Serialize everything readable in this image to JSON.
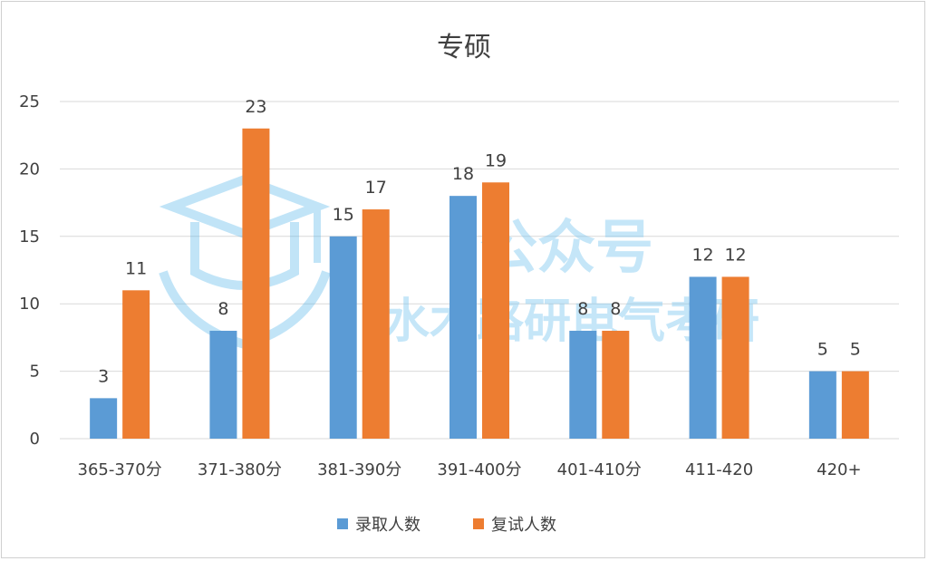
{
  "chart_data": {
    "type": "bar",
    "title": "专硕",
    "categories": [
      "365-370分",
      "371-380分",
      "381-390分",
      "391-400分",
      "401-410分",
      "411-420",
      "420+"
    ],
    "series": [
      {
        "name": "录取人数",
        "color": "#5b9bd5",
        "values": [
          3,
          8,
          15,
          18,
          8,
          12,
          5
        ]
      },
      {
        "name": "复试人数",
        "color": "#ed7d31",
        "values": [
          11,
          23,
          17,
          19,
          8,
          12,
          5
        ]
      }
    ],
    "ylim": [
      0,
      25
    ],
    "yticks": [
      0,
      5,
      10,
      15,
      20,
      25
    ],
    "grid": true,
    "legend": "bottom",
    "data_labels": true,
    "gridline_color": "#d9d9d9"
  },
  "watermark": {
    "line1": "公众号",
    "line2": "水木路研电气考研",
    "icon": "graduation-cap-logo-icon"
  }
}
